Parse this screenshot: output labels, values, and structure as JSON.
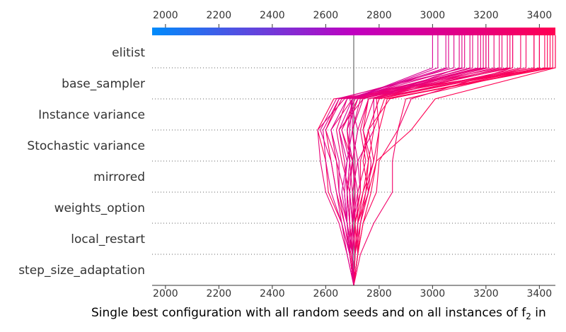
{
  "chart_data": {
    "type": "line",
    "subtype": "shap-decision-plot",
    "xlabel": "Single best configuration with all random seeds and on all instances of f",
    "xlabel_sub": "2",
    "xlabel_suffix": " in",
    "xlim": [
      1950,
      3460
    ],
    "x_ticks": [
      2000,
      2200,
      2400,
      2600,
      2800,
      3000,
      3200,
      3400
    ],
    "base_value": 2705,
    "features": [
      "elitist",
      "base_sampler",
      "Instance variance",
      "Stochastic variance",
      "mirrored",
      "weights_option",
      "local_restart",
      "step_size_adaptation"
    ],
    "colorbar": {
      "low_color": "#008bfb",
      "mid_color": "#c000c0",
      "high_color": "#ff0052"
    },
    "grid": false,
    "series": [
      [
        2705,
        2690,
        2660,
        2610,
        2600,
        2570,
        2630,
        3460
      ],
      [
        2705,
        2695,
        2670,
        2640,
        2620,
        2600,
        2650,
        3430
      ],
      [
        2705,
        2710,
        2720,
        2760,
        2790,
        2920,
        3010,
        3460
      ],
      [
        2705,
        2720,
        2740,
        2790,
        2800,
        2870,
        2900,
        3400
      ],
      [
        2705,
        2730,
        2780,
        2850,
        2850,
        2870,
        2920,
        3300
      ],
      [
        2705,
        2680,
        2650,
        2600,
        2580,
        2570,
        2670,
        3200
      ],
      [
        2705,
        2700,
        2690,
        2680,
        2690,
        2680,
        2720,
        3380
      ],
      [
        2705,
        2690,
        2680,
        2650,
        2640,
        2620,
        2700,
        3280
      ],
      [
        2705,
        2720,
        2730,
        2750,
        2760,
        2740,
        2760,
        3420
      ],
      [
        2705,
        2700,
        2680,
        2670,
        2640,
        2600,
        2660,
        3200
      ],
      [
        2705,
        2690,
        2700,
        2720,
        2700,
        2680,
        2700,
        3150
      ],
      [
        2705,
        2710,
        2720,
        2740,
        2780,
        2760,
        2800,
        3350
      ],
      [
        2705,
        2690,
        2660,
        2640,
        2620,
        2580,
        2640,
        3120
      ],
      [
        2705,
        2700,
        2700,
        2690,
        2660,
        2640,
        2680,
        3250
      ],
      [
        2705,
        2720,
        2740,
        2770,
        2790,
        2800,
        2830,
        3450
      ],
      [
        2705,
        2700,
        2710,
        2700,
        2720,
        2700,
        2730,
        3180
      ],
      [
        2705,
        2690,
        2690,
        2680,
        2700,
        2660,
        2720,
        3300
      ],
      [
        2705,
        2710,
        2700,
        2730,
        2720,
        2780,
        2780,
        3100
      ],
      [
        2705,
        2700,
        2680,
        2660,
        2680,
        2650,
        2700,
        3000
      ],
      [
        2705,
        2720,
        2730,
        2760,
        2740,
        2760,
        2840,
        3400
      ],
      [
        2705,
        2690,
        2670,
        2650,
        2650,
        2620,
        2680,
        3050
      ],
      [
        2705,
        2710,
        2730,
        2760,
        2770,
        2740,
        2780,
        3260
      ],
      [
        2705,
        2700,
        2690,
        2690,
        2700,
        2680,
        2720,
        3140
      ],
      [
        2705,
        2700,
        2710,
        2710,
        2700,
        2720,
        2760,
        3230
      ],
      [
        2705,
        2680,
        2660,
        2620,
        2600,
        2590,
        2650,
        3080
      ],
      [
        2705,
        2720,
        2720,
        2750,
        2780,
        2800,
        2790,
        3330
      ],
      [
        2705,
        2700,
        2700,
        2700,
        2690,
        2660,
        2710,
        3170
      ],
      [
        2705,
        2690,
        2680,
        2670,
        2680,
        2700,
        2700,
        3020
      ],
      [
        2705,
        2710,
        2710,
        2730,
        2730,
        2760,
        2800,
        3380
      ],
      [
        2705,
        2700,
        2690,
        2680,
        2670,
        2650,
        2740,
        3210
      ],
      [
        2705,
        2720,
        2710,
        2740,
        2760,
        2780,
        2820,
        3440
      ],
      [
        2705,
        2690,
        2700,
        2690,
        2700,
        2720,
        2690,
        3110
      ],
      [
        2705,
        2710,
        2720,
        2720,
        2750,
        2730,
        2760,
        3290
      ],
      [
        2705,
        2700,
        2680,
        2680,
        2690,
        2690,
        2700,
        3060
      ],
      [
        2705,
        2690,
        2700,
        2710,
        2710,
        2700,
        2740,
        3190
      ]
    ]
  }
}
